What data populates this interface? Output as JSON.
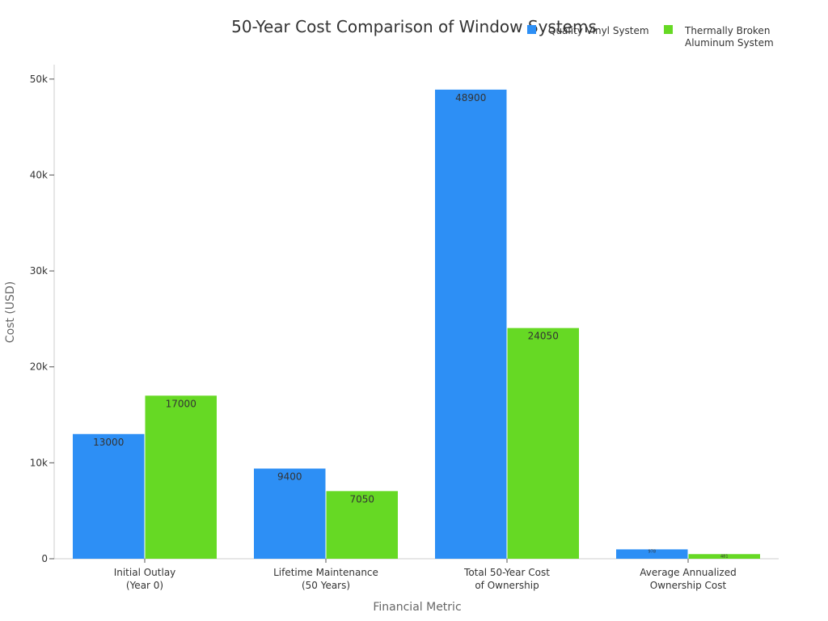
{
  "chart_data": {
    "type": "bar",
    "title": "50-Year Cost Comparison of Window Systems",
    "xlabel": "Financial Metric",
    "ylabel": "Cost (USD)",
    "ylim": [
      0,
      51500
    ],
    "yticks": [
      0,
      10000,
      20000,
      30000,
      40000,
      50000
    ],
    "ytick_labels": [
      "0",
      "10k",
      "20k",
      "30k",
      "40k",
      "50k"
    ],
    "categories": [
      [
        "Initial Outlay",
        "(Year 0)"
      ],
      [
        "Lifetime Maintenance",
        "(50 Years)"
      ],
      [
        "Total 50-Year Cost",
        "of Ownership"
      ],
      [
        "Average Annualized",
        "Ownership Cost"
      ]
    ],
    "series": [
      {
        "name": "Quality Vinyl System",
        "color": "#2d8ff5",
        "values": [
          13000,
          9400,
          48900,
          978
        ]
      },
      {
        "name": "Thermally Broken Aluminum System",
        "color": "#66d924",
        "values": [
          17000,
          7050,
          24050,
          481
        ]
      }
    ],
    "legend": {
      "placement": "top-right",
      "items": [
        [
          "Quality Vinyl System"
        ],
        [
          "Thermally Broken",
          "Aluminum System"
        ]
      ]
    },
    "grid": false
  }
}
